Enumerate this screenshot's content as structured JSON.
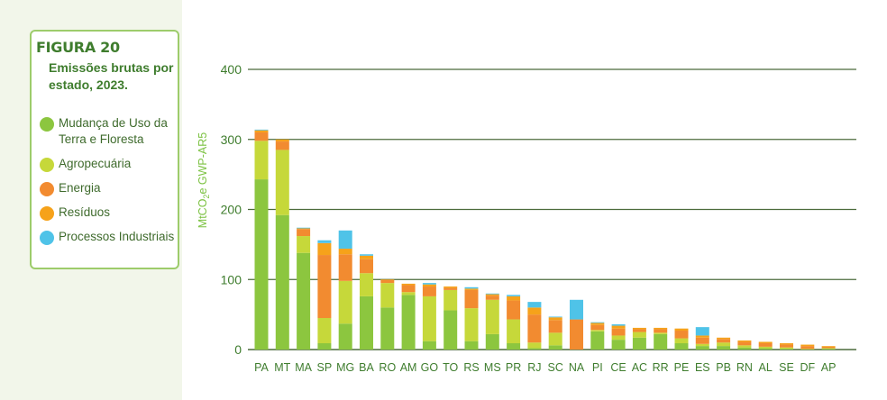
{
  "figure": {
    "label": "FIGURA 20",
    "title": "Emissões brutas por estado, 2023."
  },
  "colors": {
    "uso_terra": "#8cc63f",
    "agropecuaria": "#c6d83a",
    "energia": "#f28b30",
    "residuos": "#f6a21a",
    "processos": "#4fc3e8",
    "gridline": "#4b6b3b",
    "axis_text": "#3f7d2e"
  },
  "legend": [
    {
      "key": "uso_terra",
      "label": "Mudança de Uso da Terra e Floresta"
    },
    {
      "key": "agropecuaria",
      "label": "Agropecuária"
    },
    {
      "key": "energia",
      "label": "Energia"
    },
    {
      "key": "residuos",
      "label": "Resíduos"
    },
    {
      "key": "processos",
      "label": "Processos Industriais"
    }
  ],
  "chart_data": {
    "type": "bar",
    "stacked": true,
    "title": "Emissões brutas por estado, 2023.",
    "ylabel": "MtCO₂e GWP-AR5",
    "ylim": [
      0,
      400
    ],
    "yticks": [
      0,
      100,
      200,
      300,
      400
    ],
    "grid": true,
    "legend_position": "left",
    "categories": [
      "PA",
      "MT",
      "MA",
      "SP",
      "MG",
      "BA",
      "RO",
      "AM",
      "GO",
      "TO",
      "RS",
      "MS",
      "PR",
      "RJ",
      "SC",
      "NA",
      "PI",
      "CE",
      "AC",
      "RR",
      "PE",
      "ES",
      "PB",
      "RN",
      "AL",
      "SE",
      "DF",
      "AP"
    ],
    "series": [
      {
        "name": "Mudança de Uso da Terra e Floresta",
        "key": "uso_terra",
        "values": [
          243,
          192,
          138,
          9,
          37,
          76,
          60,
          78,
          12,
          56,
          12,
          22,
          9,
          2,
          6,
          0,
          26,
          14,
          17,
          22,
          9,
          5,
          5,
          3,
          2,
          1,
          0,
          1
        ]
      },
      {
        "name": "Agropecuária",
        "key": "agropecuaria",
        "values": [
          55,
          93,
          24,
          36,
          61,
          33,
          35,
          4,
          64,
          29,
          47,
          49,
          34,
          8,
          18,
          0,
          2,
          6,
          8,
          2,
          7,
          3,
          5,
          3,
          2,
          2,
          1,
          1
        ]
      },
      {
        "name": "Energia",
        "key": "energia",
        "values": [
          12,
          12,
          10,
          90,
          38,
          20,
          4,
          10,
          14,
          3,
          26,
          6,
          27,
          40,
          18,
          43,
          7,
          10,
          4,
          5,
          11,
          9,
          5,
          5,
          5,
          4,
          4,
          2
        ]
      },
      {
        "name": "Resíduos",
        "key": "residuos",
        "values": [
          3,
          3,
          1,
          17,
          8,
          5,
          1,
          2,
          3,
          2,
          2,
          2,
          6,
          10,
          4,
          0,
          3,
          4,
          2,
          2,
          3,
          3,
          2,
          2,
          2,
          2,
          2,
          1
        ]
      },
      {
        "name": "Processos Industriais",
        "key": "processos",
        "values": [
          1,
          0,
          1,
          4,
          26,
          2,
          0,
          0,
          2,
          0,
          2,
          1,
          2,
          8,
          1,
          28,
          1,
          2,
          0,
          0,
          0,
          12,
          0,
          0,
          0,
          0,
          0,
          0
        ]
      }
    ]
  }
}
